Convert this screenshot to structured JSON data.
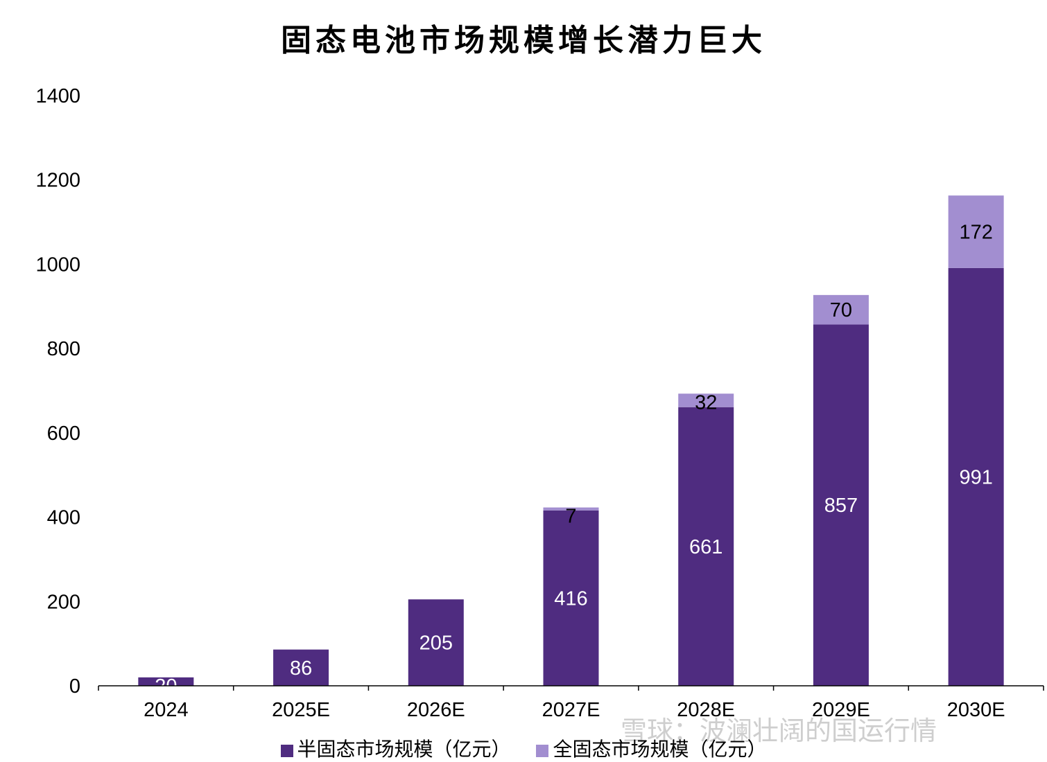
{
  "chart_data": {
    "type": "bar",
    "stacked": true,
    "title": "固态电池市场规模增长潜力巨大",
    "categories": [
      "2024",
      "2025E",
      "2026E",
      "2027E",
      "2028E",
      "2029E",
      "2030E"
    ],
    "series": [
      {
        "name": "半固态市场规模（亿元）",
        "values": [
          20,
          86,
          205,
          416,
          661,
          857,
          991
        ],
        "color": "#4f2c80",
        "label_color": "#ffffff"
      },
      {
        "name": "全固态市场规模（亿元）",
        "values": [
          null,
          null,
          null,
          7,
          32,
          70,
          172
        ],
        "color": "#a28ed0",
        "label_color": "#000000"
      }
    ],
    "ylim": [
      0,
      1400
    ],
    "yticks": [
      0,
      200,
      400,
      600,
      800,
      1000,
      1200,
      1400
    ],
    "grid": false,
    "legend": "bottom"
  },
  "watermark": "雪球：波澜壮阔的国运行情"
}
